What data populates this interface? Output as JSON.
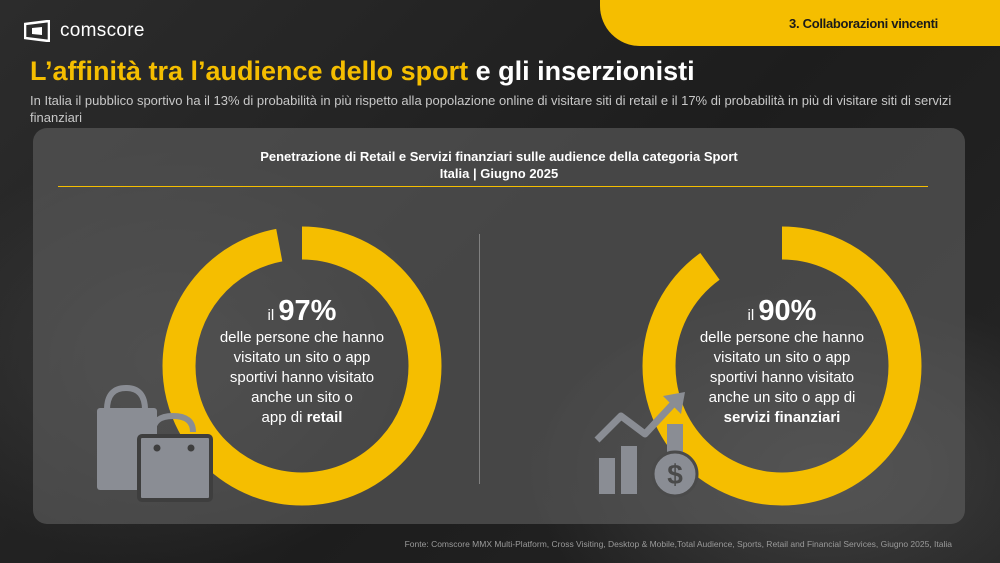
{
  "brand": {
    "name": "comscore"
  },
  "section": {
    "label": "3. Collaborazioni vincenti"
  },
  "header": {
    "title_highlight": "L’affinità tra l’audience dello sport",
    "title_rest": " e gli inserzionisti",
    "subtitle": "In Italia il pubblico sportivo ha il 13% di probabilità in più rispetto alla popolazione online di visitare siti di retail e il 17% di probabilità in più di visitare siti di servizi finanziari"
  },
  "panel": {
    "title_line1": "Penetrazione di Retail e Servizi finanziari sulle audience della categoria Sport",
    "title_line2": "Italia | Giugno 2025"
  },
  "colors": {
    "accent": "#f5be00",
    "icon": "#8a8d94",
    "ring_gap": "#5f5f5f"
  },
  "chart_data": [
    {
      "type": "pie",
      "variant": "donut",
      "value": 97,
      "value_label": "97%",
      "prefix": "il",
      "text_lines": [
        "delle persone che hanno",
        "visitato un sito o app",
        "sportivi hanno visitato",
        "anche un sito o"
      ],
      "text_last_plain": "app di ",
      "text_last_bold": "retail",
      "icon": "shopping-bags-icon"
    },
    {
      "type": "pie",
      "variant": "donut",
      "value": 90,
      "value_label": "90%",
      "prefix": "il",
      "text_lines": [
        "delle persone che hanno",
        "visitato un sito o app",
        "sportivi hanno visitato",
        "anche un sito o app di"
      ],
      "text_last_plain": "",
      "text_last_bold": "servizi finanziari",
      "icon": "financial-growth-icon"
    }
  ],
  "footer": {
    "source": "Fonte: Comscore MMX Multi-Platform, Cross Visiting, Desktop & Mobile,Total Audience, Sports, Retail and Financial Services, Giugno 2025, Italia"
  }
}
